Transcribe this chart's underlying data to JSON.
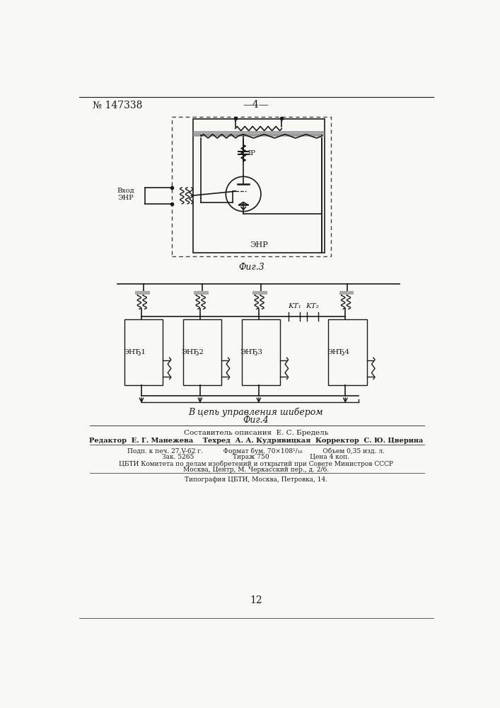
{
  "bg_color": "#f8f8f5",
  "header_no": "№ 147338",
  "header_page": "—4—",
  "fig3_label": "Фиг.3",
  "fig4_label": "Фиг.4",
  "enr_label": "ЭНР",
  "vhod_label": "Вход\nЭНР",
  "ip_label": "IP",
  "fig4_arrow_label": "В цепь управления шибером",
  "composer_line": "Составитель описания  Е. С. Бредель",
  "editor_line": "Редактор  Е. Г. Манежева    Техред  А. А. Кудрявицкая  Корректор  С. Ю. Цверина",
  "print_line1": "Подп. к печ. 27.V-62 г.          Формат бум. 70×108¹/₁₆          Объем 0,35 изд. л.",
  "print_line2": "Зак. 5265                   Тираж 750                    Цена 4 коп.",
  "cbti_line1": "ЦБТИ Комитета по делам изобретений и открытий при Совете Министров СССР",
  "cbti_line2": "Москва, Центр, М. Черкасский пер., д. 2/6.",
  "tipografia_line": "Типография ЦБТИ, Москва, Петровка, 14.",
  "page_number": "12",
  "enr_labels_fig4": [
    "ЭНЂ1",
    "ЭНЂ2",
    "ЭНЂ3",
    "ЭНЂ4"
  ],
  "kt1_label": "KT₁",
  "kt2_label": "KT₂",
  "line_color": "#1a1a1a",
  "dashed_color": "#444444",
  "white": "#ffffff"
}
